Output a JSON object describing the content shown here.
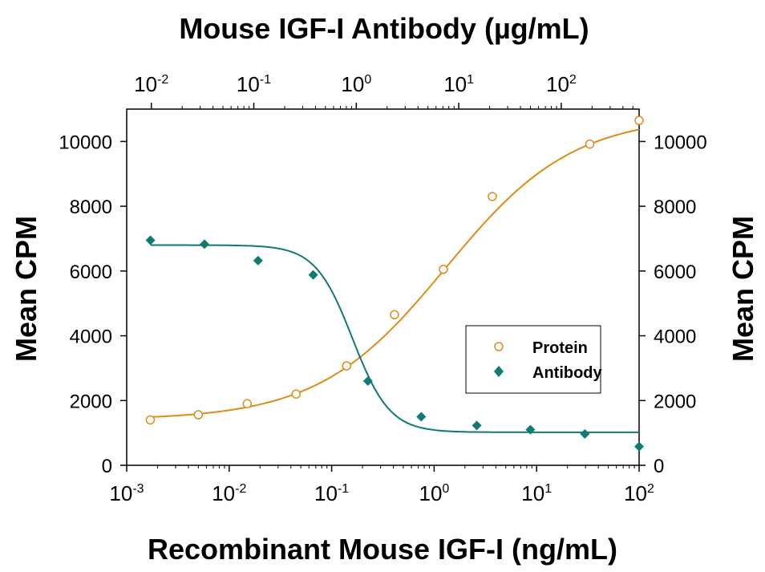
{
  "chart_data": {
    "type": "scatter",
    "title_top": "Mouse IGF-I Antibody (µg/mL)",
    "xlabel": "Recombinant Mouse IGF-I (ng/mL)",
    "ylabel_left": "Mean CPM",
    "ylabel_right": "Mean CPM",
    "x_scale": "log",
    "xlim": [
      0.001,
      100
    ],
    "x2_scale": "log",
    "x2lim": [
      0.00575,
      575
    ],
    "ylim": [
      0,
      11000
    ],
    "y_ticks": [
      "0",
      "2000",
      "4000",
      "6000",
      "8000",
      "10000"
    ],
    "x_ticks": [
      {
        "base": "10",
        "exp": "-3"
      },
      {
        "base": "10",
        "exp": "-2"
      },
      {
        "base": "10",
        "exp": "-1"
      },
      {
        "base": "10",
        "exp": "0"
      },
      {
        "base": "10",
        "exp": "1"
      },
      {
        "base": "10",
        "exp": "2"
      }
    ],
    "x2_ticks": [
      {
        "base": "10",
        "exp": "-2"
      },
      {
        "base": "10",
        "exp": "-1"
      },
      {
        "base": "10",
        "exp": "0"
      },
      {
        "base": "10",
        "exp": "1"
      },
      {
        "base": "10",
        "exp": "2"
      }
    ],
    "legend_position": "right",
    "series": [
      {
        "name": "Protein",
        "axis": "bottom",
        "marker": "open-circle",
        "color": "#E08A17",
        "x": [
          0.0017,
          0.005,
          0.015,
          0.045,
          0.14,
          0.41,
          1.23,
          3.7,
          33,
          100
        ],
        "y": [
          1400,
          1560,
          1900,
          2200,
          3070,
          4650,
          6050,
          8300,
          9920,
          10650
        ],
        "fit": {
          "bottom": 1400,
          "top": 10800,
          "ec50": 1.3,
          "hill": 0.7
        }
      },
      {
        "name": "Antibody",
        "axis": "top",
        "marker": "filled-diamond",
        "color": "#0F7A73",
        "x": [
          0.0098,
          0.033,
          0.11,
          0.38,
          1.3,
          4.3,
          15,
          50,
          170,
          575
        ],
        "y": [
          6950,
          6830,
          6320,
          5880,
          2600,
          1500,
          1230,
          1100,
          970,
          580
        ],
        "fit": {
          "bottom": 1020,
          "top": 6800,
          "ec50": 0.92,
          "hill": 2.4
        }
      }
    ]
  }
}
